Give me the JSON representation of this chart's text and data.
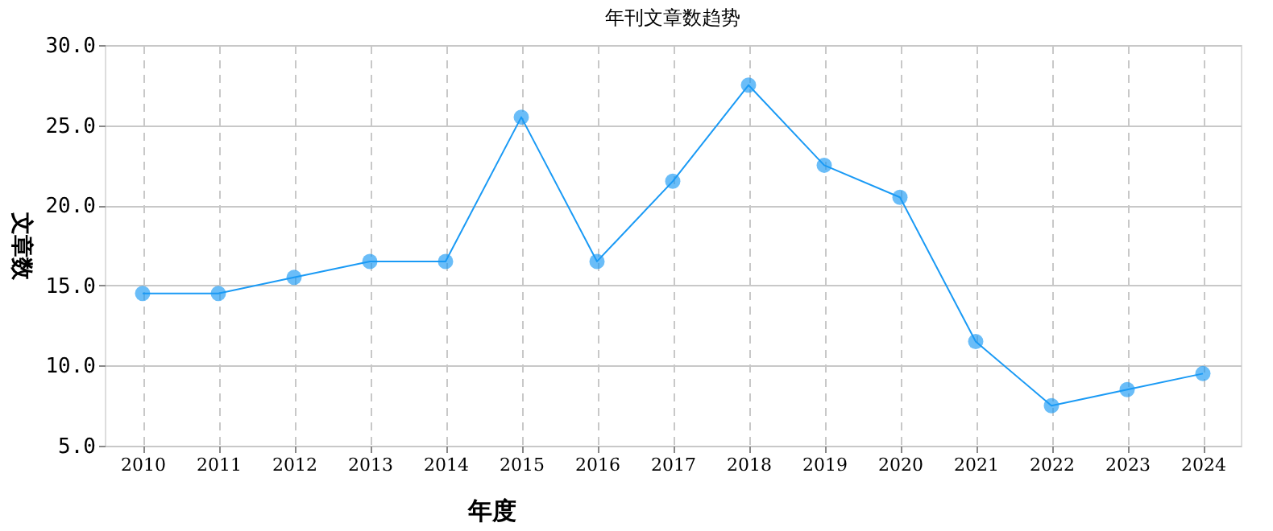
{
  "chart_data": {
    "type": "line",
    "title": "年刊文章数趋势",
    "xlabel": "年度",
    "ylabel": "文章数",
    "categories": [
      "2010",
      "2011",
      "2012",
      "2013",
      "2014",
      "2015",
      "2016",
      "2017",
      "2018",
      "2019",
      "2020",
      "2021",
      "2022",
      "2023",
      "2024"
    ],
    "series": [
      {
        "color": "#1a9af5",
        "values": [
          14.5,
          14.5,
          15.5,
          16.5,
          16.5,
          25.5,
          16.5,
          21.5,
          27.5,
          22.5,
          20.5,
          11.5,
          7.5,
          8.5,
          9.5
        ]
      }
    ],
    "ylim": [
      5,
      30
    ],
    "yticks": [
      {
        "value": 5,
        "label": "5.0"
      },
      {
        "value": 10,
        "label": "10.0"
      },
      {
        "value": 15,
        "label": "15.0"
      },
      {
        "value": 20,
        "label": "20.0"
      },
      {
        "value": 25,
        "label": "25.0"
      },
      {
        "value": 30,
        "label": "30.0"
      }
    ],
    "grid": true,
    "legend": false,
    "marker": "circle",
    "line_style": "solid"
  }
}
